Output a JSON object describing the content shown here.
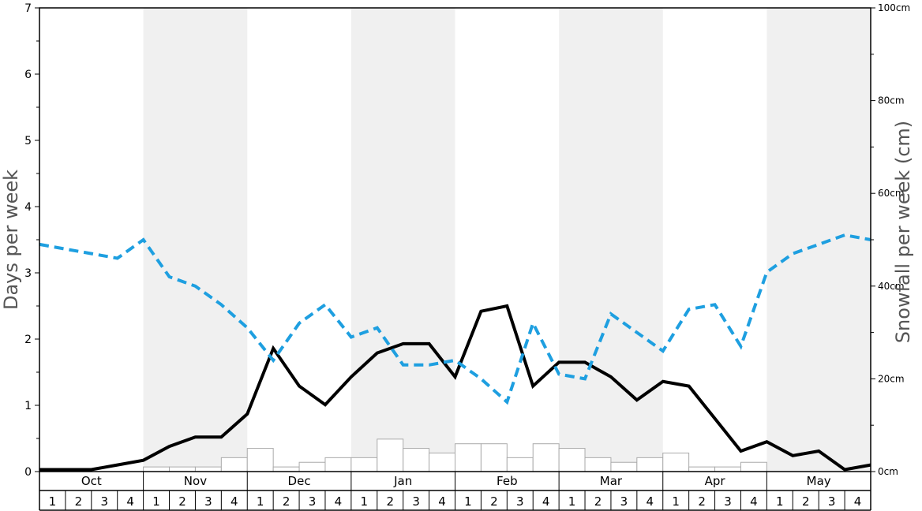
{
  "chart_data": {
    "type": "line",
    "ylabel_left": "Days per week",
    "ylabel_right": "Snowfall per week (cm)",
    "y_left": {
      "min": 0,
      "max": 7,
      "ticks": [
        "0",
        "1",
        "2",
        "3",
        "4",
        "5",
        "6",
        "7"
      ]
    },
    "y_right": {
      "min": 0,
      "max": 100,
      "ticks": [
        "0cm",
        "20cm",
        "40cm",
        "60cm",
        "80cm",
        "100cm"
      ]
    },
    "months": [
      "Oct",
      "Nov",
      "Dec",
      "Jan",
      "Feb",
      "Mar",
      "Apr",
      "May"
    ],
    "week_labels": [
      "1",
      "2",
      "3",
      "4"
    ],
    "series": [
      {
        "style": "solid",
        "color": "#000000",
        "axis": "left",
        "values": [
          0.03,
          0.03,
          0.03,
          0.1,
          0.17,
          0.38,
          0.52,
          0.52,
          0.87,
          1.86,
          1.29,
          1.01,
          1.43,
          1.79,
          1.93,
          1.93,
          1.43,
          2.42,
          2.5,
          1.29,
          1.65,
          1.65,
          1.43,
          1.08,
          1.36,
          1.29,
          0.8,
          0.31,
          0.45,
          0.24,
          0.31,
          0.03,
          0.1
        ]
      },
      {
        "style": "dashed",
        "color": "#1e9fe0",
        "axis": "right",
        "values": [
          49,
          48,
          47,
          46,
          50,
          42,
          40,
          36,
          31,
          24,
          32,
          36,
          29,
          31,
          23,
          23,
          24,
          20,
          15,
          32,
          21,
          20,
          34,
          30,
          26,
          35,
          36,
          27,
          43,
          47,
          49,
          51,
          50
        ]
      }
    ],
    "bars": {
      "color_fill": "#ffffff",
      "color_stroke": "#aaaaaa",
      "axis": "right",
      "values": [
        0,
        0,
        0,
        0,
        1,
        1,
        1,
        3,
        5,
        1,
        2,
        3,
        3,
        7,
        5,
        4,
        6,
        6,
        3,
        6,
        5,
        3,
        2,
        3,
        4,
        1,
        1,
        2,
        0,
        0,
        0,
        0
      ]
    },
    "colors": {
      "band_shade": "#f0f0f0",
      "axis": "#000000"
    }
  }
}
